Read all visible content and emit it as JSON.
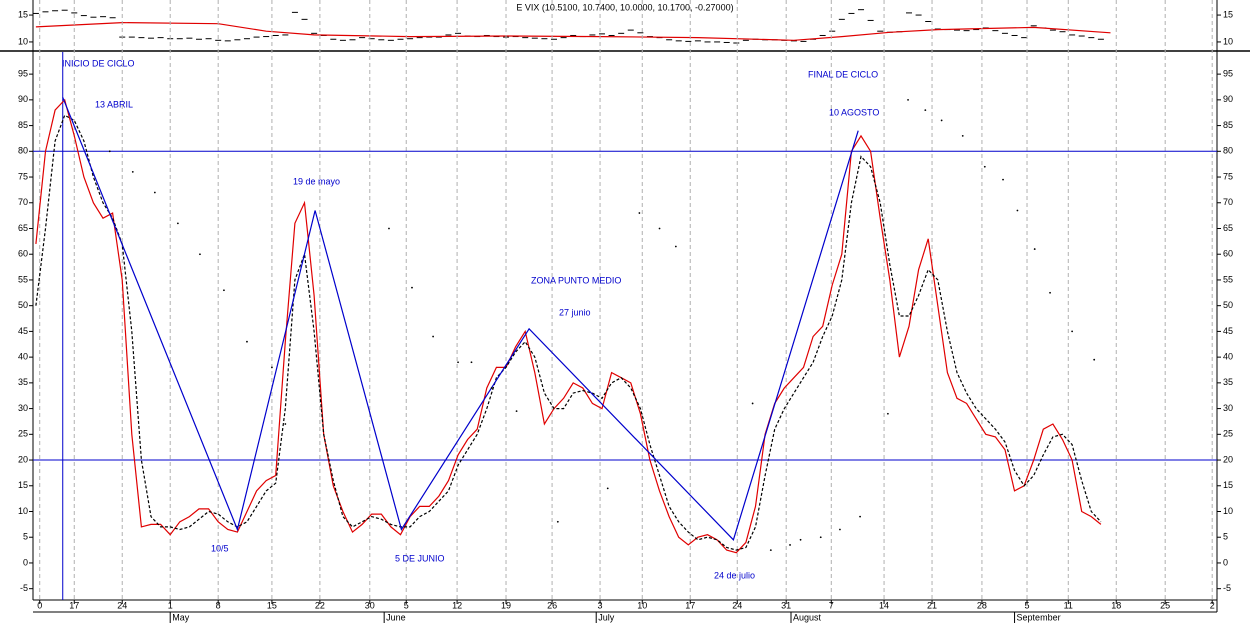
{
  "chart_data": [
    {
      "type": "stock",
      "title": "E VIX (10.5100, 10.7400, 10.0000, 10.1700, -0.27000)",
      "xlim": [
        -4.3,
        119.1
      ],
      "ylim": [
        8.5,
        17.8
      ],
      "yticks": [
        10,
        15
      ],
      "x": [
        -4,
        -3,
        -2,
        -1,
        0,
        1,
        2,
        3,
        4,
        5,
        6,
        7,
        8,
        9,
        10,
        11,
        12,
        13,
        14,
        15,
        16,
        17,
        18,
        19,
        20,
        21,
        22,
        23,
        24,
        25,
        26,
        27,
        28,
        29,
        30,
        31,
        32,
        33,
        34,
        35,
        36,
        37,
        38,
        39,
        40,
        41,
        42,
        43,
        44,
        45,
        46,
        47,
        48,
        49,
        50,
        51,
        52,
        53,
        54,
        55,
        56,
        57,
        58,
        59,
        60,
        61,
        62,
        63,
        64,
        65,
        66,
        67,
        68,
        69,
        70,
        71,
        72,
        73,
        74,
        75,
        76,
        77,
        78,
        79,
        80,
        81,
        82,
        83,
        84,
        85,
        86,
        87,
        88,
        89,
        90,
        91,
        92,
        93,
        94,
        95,
        96,
        97,
        98,
        99,
        100,
        101,
        102,
        103,
        104,
        105,
        106,
        107
      ],
      "close": [
        15.3,
        15.6,
        15.8,
        15.9,
        15.4,
        14.9,
        14.6,
        14.7,
        14.5,
        10.9,
        10.9,
        10.8,
        10.7,
        10.8,
        10.6,
        10.6,
        10.7,
        10.5,
        10.6,
        10.3,
        10.2,
        10.4,
        10.6,
        10.9,
        11.0,
        11.2,
        11.3,
        15.5,
        14.2,
        11.6,
        11.2,
        10.5,
        10.3,
        10.4,
        10.8,
        10.6,
        10.4,
        10.3,
        10.5,
        10.6,
        10.8,
        10.9,
        10.9,
        11.3,
        11.6,
        11.1,
        11.0,
        11.2,
        11.0,
        10.9,
        11.0,
        10.8,
        10.7,
        10.6,
        10.5,
        10.8,
        11.2,
        11.0,
        11.3,
        11.5,
        11.2,
        11.6,
        12.2,
        11.7,
        11.0,
        10.8,
        10.4,
        10.2,
        10.1,
        10.2,
        10.0,
        10.0,
        9.9,
        9.8,
        10.3,
        10.5,
        10.4,
        10.4,
        10.3,
        10.2,
        10.1,
        10.5,
        11.2,
        12.0,
        14.2,
        15.3,
        16.0,
        14.0,
        12.0,
        11.8,
        11.9,
        15.4,
        15.0,
        13.8,
        12.4,
        12.3,
        12.2,
        12.1,
        12.3,
        12.6,
        12.1,
        11.6,
        11.2,
        10.8,
        13.0,
        12.6,
        12.2,
        11.9,
        11.3,
        11.1,
        10.8,
        10.5
      ],
      "bar_color": "#000000",
      "series": [
        {
          "color": "#e00000",
          "style": "solid",
          "x": [
            -4,
            5,
            15,
            20,
            25,
            35,
            45,
            55,
            65,
            75,
            80,
            85,
            90,
            100,
            108
          ],
          "values": [
            12.8,
            13.6,
            13.4,
            12.0,
            11.3,
            11.0,
            11.1,
            11.0,
            10.8,
            10.3,
            11.0,
            11.8,
            12.3,
            12.7,
            11.7
          ]
        }
      ]
    },
    {
      "type": "line",
      "xlim": [
        -4.3,
        119.1
      ],
      "ylim": [
        -7.2,
        99.3
      ],
      "yticks": [
        -5,
        0,
        5,
        10,
        15,
        20,
        25,
        30,
        35,
        40,
        45,
        50,
        55,
        60,
        65,
        70,
        75,
        80,
        85,
        90,
        95
      ],
      "xticks": [
        {
          "value": -3.6,
          "label": "0"
        },
        {
          "value": 0,
          "label": "17"
        },
        {
          "value": 5,
          "label": "24"
        },
        {
          "value": 10,
          "label": "1"
        },
        {
          "value": 15,
          "label": "8"
        },
        {
          "value": 20.6,
          "label": "15"
        },
        {
          "value": 25.6,
          "label": "22"
        },
        {
          "value": 30.8,
          "label": "30"
        },
        {
          "value": 34.6,
          "label": "5"
        },
        {
          "value": 39.9,
          "label": "12"
        },
        {
          "value": 45,
          "label": "19"
        },
        {
          "value": 49.8,
          "label": "26"
        },
        {
          "value": 54.8,
          "label": "3"
        },
        {
          "value": 59.2,
          "label": "10"
        },
        {
          "value": 64.2,
          "label": "17"
        },
        {
          "value": 69.1,
          "label": "24"
        },
        {
          "value": 74.2,
          "label": "31"
        },
        {
          "value": 78.9,
          "label": "7"
        },
        {
          "value": 84.4,
          "label": "14"
        },
        {
          "value": 89.4,
          "label": "21"
        },
        {
          "value": 94.6,
          "label": "28"
        },
        {
          "value": 99.3,
          "label": "5"
        },
        {
          "value": 103.6,
          "label": "11"
        },
        {
          "value": 108.6,
          "label": "18"
        },
        {
          "value": 113.7,
          "label": "25"
        },
        {
          "value": 118.6,
          "label": "2"
        }
      ],
      "months": [
        {
          "value": 10,
          "label": "May"
        },
        {
          "value": 32.3,
          "label": "June"
        },
        {
          "value": 54.4,
          "label": "July"
        },
        {
          "value": 74.7,
          "label": "August"
        },
        {
          "value": 98,
          "label": "September"
        }
      ],
      "grid": true,
      "hlines": [
        80,
        20
      ],
      "vline": -1.2,
      "ref_color": "#0000cc",
      "x": [
        -4,
        -3,
        -2,
        -1,
        0,
        1,
        2,
        3,
        4,
        5,
        6,
        7,
        8,
        9,
        10,
        11,
        12,
        13,
        14,
        15,
        16,
        17,
        18,
        19,
        20,
        21,
        22,
        23,
        24,
        25,
        26,
        27,
        28,
        29,
        30,
        31,
        32,
        33,
        34,
        35,
        36,
        37,
        38,
        39,
        40,
        41,
        42,
        43,
        44,
        45,
        46,
        47,
        48,
        49,
        50,
        51,
        52,
        53,
        54,
        55,
        56,
        57,
        58,
        59,
        60,
        61,
        62,
        63,
        64,
        65,
        66,
        67,
        68,
        69,
        70,
        71,
        72,
        73,
        74,
        75,
        76,
        77,
        78,
        79,
        80,
        81,
        82,
        83,
        84,
        85,
        86,
        87,
        88,
        89,
        90,
        91,
        92,
        93,
        94,
        95,
        96,
        97,
        98,
        99,
        100,
        101,
        102,
        103,
        104,
        105,
        106,
        107
      ],
      "series": [
        {
          "color": "#e00000",
          "style": "solid",
          "values": [
            62,
            80,
            88,
            90,
            83,
            75,
            70,
            67,
            68,
            55,
            25,
            7,
            7.5,
            7.5,
            5.5,
            8,
            9,
            10.5,
            10.5,
            8,
            6.5,
            6,
            10,
            14,
            16,
            17,
            43,
            66,
            70,
            52,
            25,
            15,
            10,
            6,
            7.5,
            9.5,
            9.5,
            7,
            5.5,
            9,
            11,
            11,
            13,
            16,
            21,
            24,
            26,
            34,
            38,
            38,
            42,
            45,
            37,
            27,
            30,
            32,
            35,
            34,
            31,
            30,
            37,
            36,
            35,
            29,
            20,
            14,
            9,
            5,
            3.5,
            5,
            5.5,
            4.5,
            2.5,
            2,
            4,
            11,
            25,
            31,
            34,
            36,
            38,
            44,
            46,
            54,
            60,
            80,
            83,
            80,
            67,
            55,
            40,
            46,
            57,
            63,
            50,
            37,
            32,
            31,
            28,
            25,
            24.5,
            22,
            14,
            15,
            20,
            26,
            27,
            24,
            20,
            10,
            9,
            7.5
          ]
        },
        {
          "color": "#000000",
          "style": "dashed",
          "values": [
            50,
            65,
            82,
            87,
            86,
            82,
            75,
            70,
            67,
            62,
            45,
            20,
            9,
            7,
            7,
            6.5,
            7,
            8.5,
            10,
            9.5,
            8,
            7,
            8,
            11,
            14,
            15.5,
            30,
            55,
            60,
            45,
            25,
            16,
            9,
            7,
            8,
            9,
            8.5,
            7.5,
            7,
            7,
            9,
            10,
            12,
            14,
            19,
            22,
            25,
            30,
            36,
            38,
            41,
            43,
            40,
            33,
            30,
            30,
            33,
            33.5,
            33,
            32,
            35,
            36,
            34,
            30,
            23,
            17,
            11,
            8,
            6,
            4.5,
            5,
            4.5,
            3,
            2.5,
            3,
            7,
            17,
            26,
            30,
            33,
            36,
            39,
            44,
            48,
            55,
            70,
            79,
            77,
            70,
            58,
            48,
            48,
            52,
            57,
            55,
            45,
            37,
            33,
            30,
            28,
            26,
            23.5,
            18,
            15,
            17,
            21,
            24.5,
            25,
            23,
            16,
            10,
            8
          ]
        },
        {
          "color": "#0000cc",
          "style": "solid",
          "x": [
            -1.2,
            17,
            25.1,
            34.1,
            47.4,
            68.7,
            81.7
          ],
          "values": [
            90.5,
            6.5,
            68.5,
            6.5,
            45.5,
            4.5,
            84
          ]
        },
        {
          "color": "#000000",
          "style": "dots",
          "x": [
            3.7,
            6.1,
            8.4,
            10.8,
            13.1,
            15.6,
            18.0,
            20.6,
            22.0,
            32.8,
            35.2,
            37.4,
            40.0,
            41.4,
            43.5,
            46.1,
            50.4,
            55.6,
            58.9,
            61.0,
            62.7,
            70.7,
            72.6,
            74.6,
            75.7,
            77.8,
            79.8,
            81.9,
            84.8,
            86.9,
            88.7,
            90.4,
            92.6,
            94.9,
            96.8,
            98.3,
            100.1,
            101.7,
            104.0,
            106.3
          ],
          "values": [
            80,
            76,
            72,
            66,
            60,
            53,
            43,
            38,
            27,
            65,
            53.5,
            44,
            39,
            39,
            34,
            29.5,
            8,
            14.5,
            68,
            65,
            61.5,
            31,
            2.5,
            3.5,
            4.5,
            5,
            6.5,
            9,
            29,
            90,
            88,
            86,
            83,
            77,
            74.5,
            68.5,
            61,
            52.5,
            45,
            39.5
          ]
        }
      ],
      "annotation_color": "#0000cc",
      "annotations": [
        "INICIO DE CICLO",
        "13 ABRIL",
        "19 de mayo",
        "10/5",
        "5 DE JUNIO",
        "ZONA PUNTO MEDIO",
        "27 junio",
        "24 de julio",
        "FINAL DE CICLO",
        "10 AGOSTO"
      ]
    }
  ]
}
